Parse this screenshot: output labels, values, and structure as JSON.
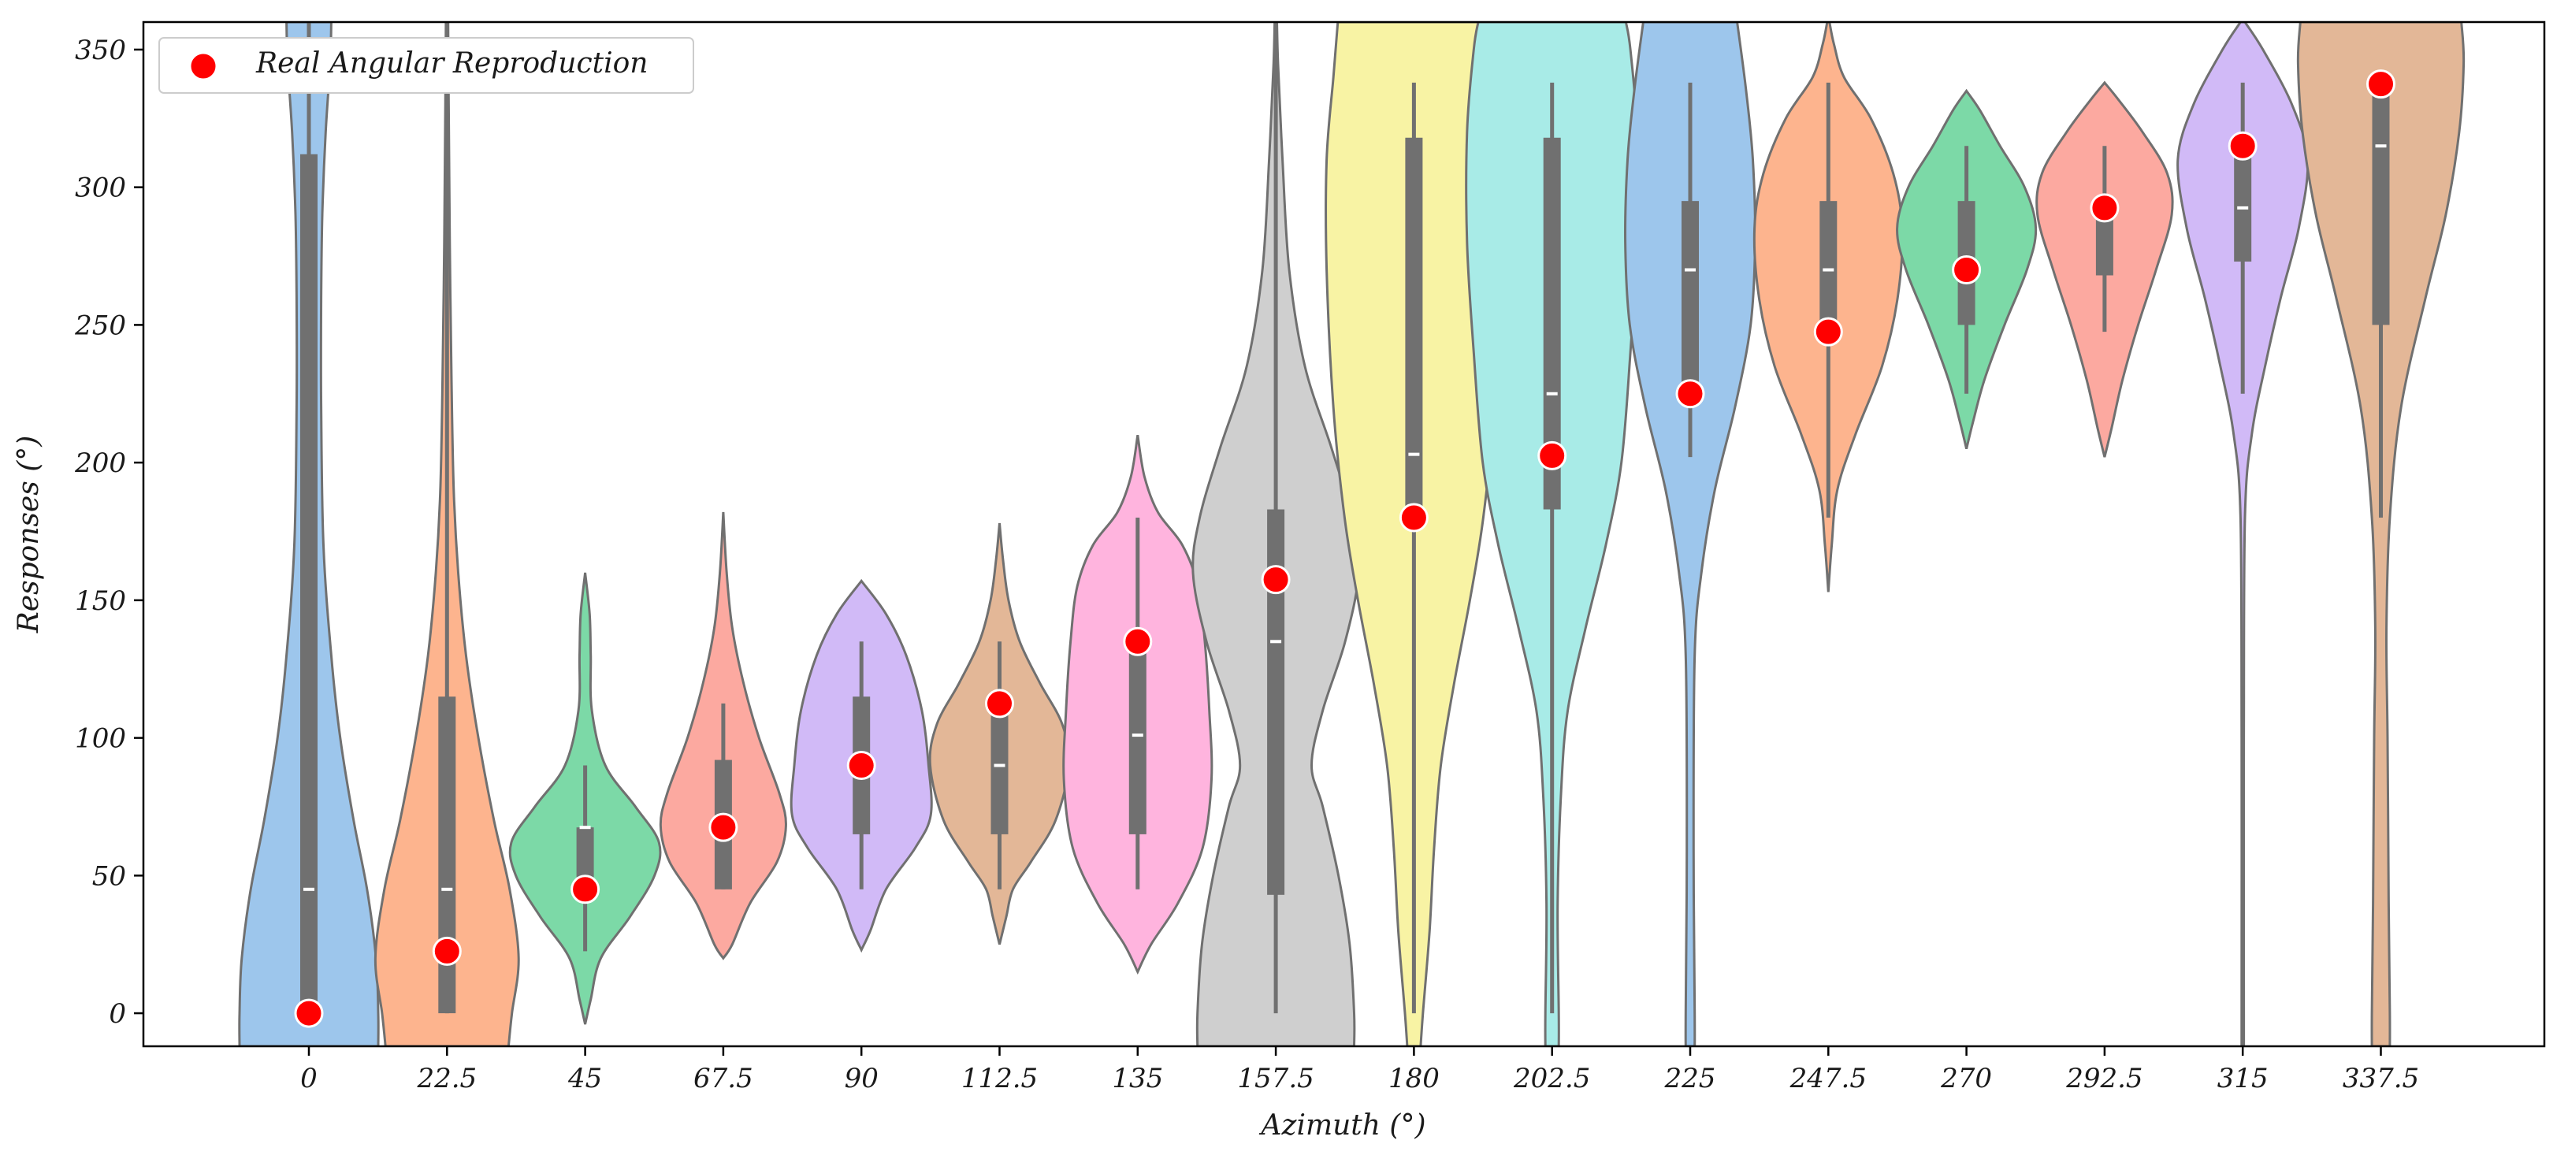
{
  "chart_data": {
    "type": "violin",
    "xlabel": "Azimuth (°)",
    "ylabel": "Responses (°)",
    "ylim": [
      -12,
      360
    ],
    "yticks": [
      0,
      50,
      100,
      150,
      200,
      250,
      300,
      350
    ],
    "ytick_labels": [
      "0",
      "50",
      "100",
      "150",
      "200",
      "250",
      "300",
      "350"
    ],
    "legend": {
      "label": "Real Angular Reproduction",
      "marker_color": "#ff0000",
      "placement": "top-left"
    },
    "colors": {
      "violin_edge": "#707070",
      "box": "#707070",
      "median": "#ffffff",
      "marker": "#ff0000",
      "marker_edge": "#ffffff"
    },
    "categories": [
      "0",
      "22.5",
      "45",
      "67.5",
      "90",
      "112.5",
      "135",
      "157.5",
      "180",
      "202.5",
      "225",
      "247.5",
      "270",
      "292.5",
      "315",
      "337.5"
    ],
    "series": [
      {
        "azimuth": "0",
        "real": 0,
        "median": 45,
        "q1": 0,
        "q3": 312,
        "whisker_low": 0,
        "whisker_high": 360,
        "color": "#9dc6ec",
        "profile": [
          [
            -12,
            0.62
          ],
          [
            0,
            0.62
          ],
          [
            20,
            0.6
          ],
          [
            45,
            0.52
          ],
          [
            70,
            0.4
          ],
          [
            100,
            0.28
          ],
          [
            130,
            0.2
          ],
          [
            170,
            0.13
          ],
          [
            220,
            0.11
          ],
          [
            260,
            0.11
          ],
          [
            290,
            0.12
          ],
          [
            320,
            0.15
          ],
          [
            345,
            0.19
          ],
          [
            360,
            0.2
          ]
        ]
      },
      {
        "azimuth": "22.5",
        "real": 22.5,
        "median": 45,
        "q1": 0,
        "q3": 115,
        "whisker_low": 0,
        "whisker_high": 360,
        "color": "#fdb48e",
        "profile": [
          [
            -12,
            0.55
          ],
          [
            0,
            0.58
          ],
          [
            20,
            0.64
          ],
          [
            45,
            0.56
          ],
          [
            70,
            0.42
          ],
          [
            100,
            0.28
          ],
          [
            130,
            0.17
          ],
          [
            160,
            0.1
          ],
          [
            190,
            0.06
          ],
          [
            230,
            0.04
          ],
          [
            280,
            0.025
          ],
          [
            330,
            0.015
          ],
          [
            360,
            0.01
          ]
        ]
      },
      {
        "azimuth": "45",
        "real": 45,
        "median": 67.5,
        "q1": 45,
        "q3": 67.5,
        "whisker_low": 22.5,
        "whisker_high": 90,
        "color": "#7cd9a7",
        "profile": [
          [
            -4,
            0.0
          ],
          [
            5,
            0.05
          ],
          [
            20,
            0.14
          ],
          [
            35,
            0.4
          ],
          [
            50,
            0.62
          ],
          [
            62,
            0.66
          ],
          [
            75,
            0.45
          ],
          [
            90,
            0.18
          ],
          [
            110,
            0.06
          ],
          [
            130,
            0.05
          ],
          [
            145,
            0.04
          ],
          [
            160,
            0.0
          ]
        ]
      },
      {
        "azimuth": "67.5",
        "real": 67.5,
        "median": 67.5,
        "q1": 45,
        "q3": 92,
        "whisker_low": 45,
        "whisker_high": 112.5,
        "color": "#fca9a0",
        "profile": [
          [
            20,
            0.0
          ],
          [
            25,
            0.08
          ],
          [
            40,
            0.24
          ],
          [
            55,
            0.48
          ],
          [
            68,
            0.56
          ],
          [
            80,
            0.5
          ],
          [
            100,
            0.32
          ],
          [
            120,
            0.18
          ],
          [
            140,
            0.08
          ],
          [
            160,
            0.03
          ],
          [
            182,
            0.0
          ]
        ]
      },
      {
        "azimuth": "90",
        "real": 90,
        "median": 90,
        "q1": 65,
        "q3": 115,
        "whisker_low": 45,
        "whisker_high": 135,
        "color": "#d1baf7",
        "profile": [
          [
            23,
            0.0
          ],
          [
            30,
            0.08
          ],
          [
            45,
            0.22
          ],
          [
            60,
            0.48
          ],
          [
            72,
            0.62
          ],
          [
            90,
            0.6
          ],
          [
            110,
            0.54
          ],
          [
            130,
            0.4
          ],
          [
            145,
            0.22
          ],
          [
            157,
            0.0
          ]
        ]
      },
      {
        "azimuth": "112.5",
        "real": 112.5,
        "median": 90,
        "q1": 65,
        "q3": 115,
        "whisker_low": 45,
        "whisker_high": 135,
        "color": "#e3b797",
        "profile": [
          [
            25,
            0.0
          ],
          [
            35,
            0.06
          ],
          [
            45,
            0.12
          ],
          [
            55,
            0.28
          ],
          [
            70,
            0.5
          ],
          [
            90,
            0.62
          ],
          [
            105,
            0.56
          ],
          [
            120,
            0.36
          ],
          [
            135,
            0.18
          ],
          [
            150,
            0.08
          ],
          [
            165,
            0.03
          ],
          [
            178,
            0.0
          ]
        ]
      },
      {
        "azimuth": "135",
        "real": 135,
        "median": 101,
        "q1": 65,
        "q3": 135,
        "whisker_low": 45,
        "whisker_high": 180,
        "color": "#ffb4de",
        "profile": [
          [
            15,
            0.0
          ],
          [
            25,
            0.12
          ],
          [
            40,
            0.36
          ],
          [
            60,
            0.58
          ],
          [
            85,
            0.66
          ],
          [
            110,
            0.64
          ],
          [
            135,
            0.6
          ],
          [
            155,
            0.54
          ],
          [
            170,
            0.4
          ],
          [
            182,
            0.18
          ],
          [
            195,
            0.06
          ],
          [
            210,
            0.0
          ]
        ]
      },
      {
        "azimuth": "157.5",
        "real": 157.5,
        "median": 135,
        "q1": 43,
        "q3": 183,
        "whisker_low": 0,
        "whisker_high": 360,
        "color": "#cfcfcf",
        "profile": [
          [
            -12,
            0.7
          ],
          [
            0,
            0.7
          ],
          [
            25,
            0.66
          ],
          [
            50,
            0.56
          ],
          [
            75,
            0.42
          ],
          [
            90,
            0.32
          ],
          [
            110,
            0.42
          ],
          [
            135,
            0.62
          ],
          [
            160,
            0.74
          ],
          [
            180,
            0.68
          ],
          [
            205,
            0.5
          ],
          [
            235,
            0.26
          ],
          [
            270,
            0.12
          ],
          [
            310,
            0.06
          ],
          [
            345,
            0.02
          ],
          [
            360,
            0.01
          ]
        ]
      },
      {
        "azimuth": "180",
        "real": 180,
        "median": 203,
        "q1": 180,
        "q3": 318,
        "whisker_low": 0,
        "whisker_high": 338,
        "color": "#f8f3a4",
        "profile": [
          [
            -12,
            0.06
          ],
          [
            0,
            0.08
          ],
          [
            30,
            0.14
          ],
          [
            60,
            0.18
          ],
          [
            90,
            0.24
          ],
          [
            120,
            0.36
          ],
          [
            150,
            0.5
          ],
          [
            180,
            0.62
          ],
          [
            220,
            0.72
          ],
          [
            270,
            0.78
          ],
          [
            310,
            0.78
          ],
          [
            340,
            0.72
          ],
          [
            360,
            0.68
          ]
        ]
      },
      {
        "azimuth": "202.5",
        "real": 202.5,
        "median": 225,
        "q1": 183,
        "q3": 318,
        "whisker_low": 0,
        "whisker_high": 338,
        "color": "#a8ebe7",
        "profile": [
          [
            -12,
            0.06
          ],
          [
            0,
            0.06
          ],
          [
            40,
            0.05
          ],
          [
            80,
            0.08
          ],
          [
            110,
            0.14
          ],
          [
            140,
            0.3
          ],
          [
            170,
            0.48
          ],
          [
            200,
            0.62
          ],
          [
            240,
            0.7
          ],
          [
            280,
            0.76
          ],
          [
            320,
            0.76
          ],
          [
            350,
            0.7
          ],
          [
            360,
            0.66
          ]
        ]
      },
      {
        "azimuth": "225",
        "real": 225,
        "median": 270,
        "q1": 225,
        "q3": 295,
        "whisker_low": 202,
        "whisker_high": 338,
        "color": "#9dc6ec",
        "profile": [
          [
            -12,
            0.04
          ],
          [
            0,
            0.04
          ],
          [
            60,
            0.03
          ],
          [
            130,
            0.04
          ],
          [
            160,
            0.1
          ],
          [
            190,
            0.22
          ],
          [
            220,
            0.4
          ],
          [
            250,
            0.54
          ],
          [
            280,
            0.58
          ],
          [
            310,
            0.56
          ],
          [
            335,
            0.5
          ],
          [
            360,
            0.42
          ]
        ]
      },
      {
        "azimuth": "247.5",
        "real": 247.5,
        "median": 270,
        "q1": 247.5,
        "q3": 295,
        "whisker_low": 180,
        "whisker_high": 338,
        "color": "#fdb48e",
        "profile": [
          [
            153,
            0.0
          ],
          [
            170,
            0.03
          ],
          [
            190,
            0.08
          ],
          [
            210,
            0.24
          ],
          [
            235,
            0.48
          ],
          [
            260,
            0.62
          ],
          [
            285,
            0.66
          ],
          [
            305,
            0.58
          ],
          [
            325,
            0.38
          ],
          [
            340,
            0.14
          ],
          [
            352,
            0.05
          ],
          [
            360,
            0.01
          ]
        ]
      },
      {
        "azimuth": "270",
        "real": 270,
        "median": 270,
        "q1": 250,
        "q3": 295,
        "whisker_low": 225,
        "whisker_high": 315,
        "color": "#7cd9a7",
        "profile": [
          [
            205,
            0.0
          ],
          [
            215,
            0.06
          ],
          [
            230,
            0.16
          ],
          [
            250,
            0.34
          ],
          [
            270,
            0.54
          ],
          [
            285,
            0.62
          ],
          [
            300,
            0.52
          ],
          [
            315,
            0.3
          ],
          [
            328,
            0.12
          ],
          [
            335,
            0.0
          ]
        ]
      },
      {
        "azimuth": "292.5",
        "real": 292.5,
        "median": 292.5,
        "q1": 268,
        "q3": 295,
        "whisker_low": 247.5,
        "whisker_high": 315,
        "color": "#fca9a0",
        "profile": [
          [
            202,
            0.0
          ],
          [
            212,
            0.06
          ],
          [
            230,
            0.16
          ],
          [
            250,
            0.3
          ],
          [
            270,
            0.46
          ],
          [
            290,
            0.6
          ],
          [
            305,
            0.56
          ],
          [
            320,
            0.34
          ],
          [
            332,
            0.12
          ],
          [
            338,
            0.0
          ]
        ]
      },
      {
        "azimuth": "315",
        "real": 315,
        "median": 292.5,
        "q1": 273,
        "q3": 315,
        "whisker_low": 225,
        "whisker_high": 338,
        "color": "#d1baf7",
        "profile": [
          [
            -12,
            0.01
          ],
          [
            0,
            0.01
          ],
          [
            100,
            0.01
          ],
          [
            180,
            0.02
          ],
          [
            210,
            0.08
          ],
          [
            235,
            0.2
          ],
          [
            260,
            0.34
          ],
          [
            285,
            0.5
          ],
          [
            310,
            0.58
          ],
          [
            330,
            0.44
          ],
          [
            350,
            0.18
          ],
          [
            360,
            0.02
          ]
        ]
      },
      {
        "azimuth": "337.5",
        "real": 337.5,
        "median": 315,
        "q1": 250,
        "q3": 338,
        "whisker_low": 180,
        "whisker_high": 338,
        "color": "#e3b797",
        "profile": [
          [
            -12,
            0.08
          ],
          [
            0,
            0.08
          ],
          [
            40,
            0.07
          ],
          [
            100,
            0.06
          ],
          [
            140,
            0.05
          ],
          [
            180,
            0.08
          ],
          [
            220,
            0.18
          ],
          [
            260,
            0.4
          ],
          [
            290,
            0.58
          ],
          [
            320,
            0.7
          ],
          [
            345,
            0.74
          ],
          [
            360,
            0.72
          ]
        ]
      }
    ]
  }
}
